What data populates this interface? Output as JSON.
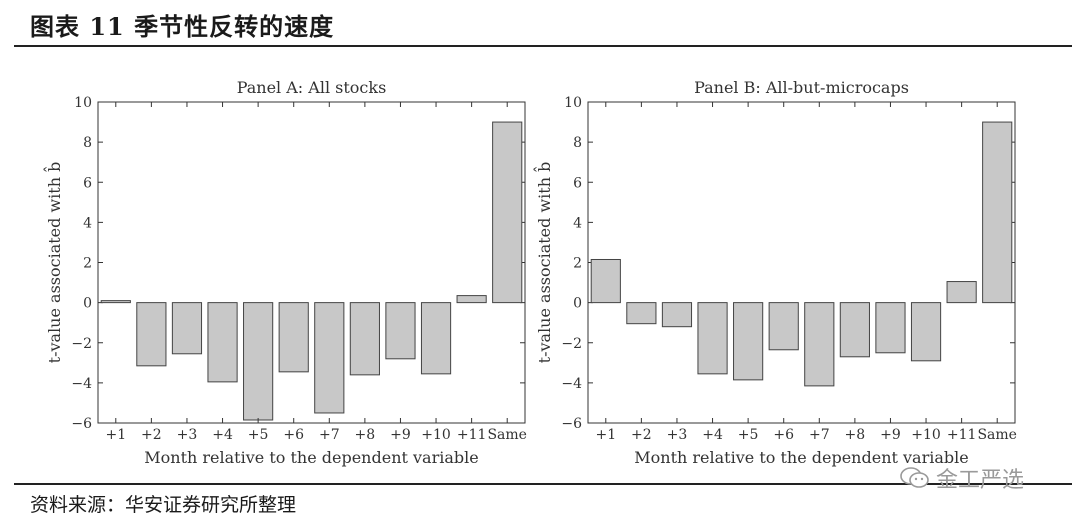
{
  "header": {
    "title": "图表 11 季节性反转的速度"
  },
  "footer": {
    "source": "资料来源：华安证券研究所整理",
    "watermark": "金工严选"
  },
  "chart_data": [
    {
      "type": "bar",
      "title": "Panel A: All stocks",
      "xlabel": "Month relative to the dependent variable",
      "ylabel": "t-value associated with b̂",
      "ylim": [
        -6,
        10
      ],
      "yticks": [
        "−6",
        "−4",
        "−2",
        "0",
        "2",
        "4",
        "6",
        "8",
        "10"
      ],
      "categories": [
        "+1",
        "+2",
        "+3",
        "+4",
        "+5",
        "+6",
        "+7",
        "+8",
        "+9",
        "+10",
        "+11",
        "Same"
      ],
      "values": [
        0.1,
        -3.15,
        -2.55,
        -3.95,
        -5.85,
        -3.45,
        -5.5,
        -3.6,
        -2.8,
        -3.55,
        0.35,
        9.0
      ]
    },
    {
      "type": "bar",
      "title": "Panel B: All-but-microcaps",
      "xlabel": "Month relative to the dependent variable",
      "ylabel": "t-value associated with b̂",
      "ylim": [
        -6,
        10
      ],
      "yticks": [
        "−6",
        "−4",
        "−2",
        "0",
        "2",
        "4",
        "6",
        "8",
        "10"
      ],
      "categories": [
        "+1",
        "+2",
        "+3",
        "+4",
        "+5",
        "+6",
        "+7",
        "+8",
        "+9",
        "+10",
        "+11",
        "Same"
      ],
      "values": [
        2.15,
        -1.05,
        -1.2,
        -3.55,
        -3.85,
        -2.35,
        -4.15,
        -2.7,
        -2.5,
        -2.9,
        1.05,
        9.0
      ]
    }
  ]
}
